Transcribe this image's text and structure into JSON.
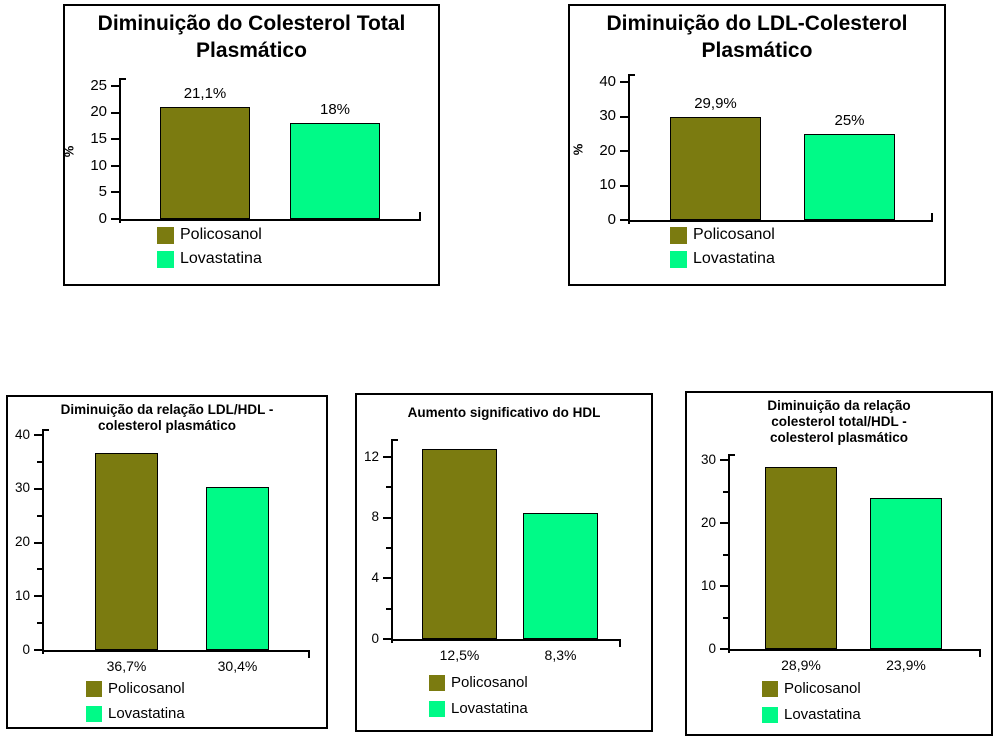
{
  "page": {
    "background": "#ffffff"
  },
  "series_colors": {
    "policosanol": "#7b7b10",
    "lovastatina": "#00fa87"
  },
  "chart_data": [
    {
      "type": "bar",
      "title": "Diminuição do Colesterol Total Plasmático",
      "title_lines": [
        "Diminuição do Colesterol Total",
        "Plasmático"
      ],
      "xlabel": "",
      "ylabel": "%",
      "ylim": [
        0,
        25
      ],
      "yticks": [
        0,
        5,
        10,
        15,
        20,
        25
      ],
      "minor_ticks": [],
      "grid": false,
      "categories": [
        "Policosanol",
        "Lovastatina"
      ],
      "values": [
        21.1,
        18
      ],
      "value_labels": [
        "21,1%",
        "18%"
      ],
      "value_label_position": "above",
      "legend": [
        "Policosanol",
        "Lovastatina"
      ],
      "legend_position": "bottom-left"
    },
    {
      "type": "bar",
      "title": "Diminuição do LDL-Colesterol Plasmático",
      "title_lines": [
        "Diminuição do LDL-Colesterol",
        "Plasmático"
      ],
      "xlabel": "",
      "ylabel": "%",
      "ylim": [
        0,
        40
      ],
      "yticks": [
        0,
        10,
        20,
        30,
        40
      ],
      "minor_ticks": [],
      "grid": false,
      "categories": [
        "Policosanol",
        "Lovastatina"
      ],
      "values": [
        29.9,
        25
      ],
      "value_labels": [
        "29,9%",
        "25%"
      ],
      "value_label_position": "above",
      "legend": [
        "Policosanol",
        "Lovastatina"
      ],
      "legend_position": "bottom-left"
    },
    {
      "type": "bar",
      "title": "Diminuição da relação LDL/HDL - colesterol plasmático",
      "title_lines": [
        "Diminuição da relação LDL/HDL -",
        "colesterol plasmático"
      ],
      "xlabel": "",
      "ylabel": "",
      "ylim": [
        0,
        40
      ],
      "yticks": [
        0,
        10,
        20,
        30,
        40
      ],
      "minor_ticks": [
        5,
        15,
        25,
        35
      ],
      "grid": false,
      "categories": [
        "Policosanol",
        "Lovastatina"
      ],
      "values": [
        36.7,
        30.4
      ],
      "value_labels": [
        "36,7%",
        "30,4%"
      ],
      "value_label_position": "below",
      "legend": [
        "Policosanol",
        "Lovastatina"
      ],
      "legend_position": "bottom-left"
    },
    {
      "type": "bar",
      "title": "Aumento significativo do HDL",
      "title_lines": [
        "Aumento significativo do HDL"
      ],
      "xlabel": "",
      "ylabel": "",
      "ylim": [
        0,
        12
      ],
      "yticks": [
        0,
        4,
        8,
        12
      ],
      "minor_ticks": [
        2,
        6,
        10
      ],
      "grid": false,
      "categories": [
        "Policosanol",
        "Lovastatina"
      ],
      "values": [
        12.5,
        8.3
      ],
      "value_labels": [
        "12,5%",
        "8,3%"
      ],
      "value_label_position": "below",
      "legend": [
        "Policosanol",
        "Lovastatina"
      ],
      "legend_position": "bottom-left"
    },
    {
      "type": "bar",
      "title": "Diminuição da relação colesterol total/HDL - colesterol plasmático",
      "title_lines": [
        "Diminuição da relação",
        "colesterol total/HDL -",
        "colesterol plasmático"
      ],
      "xlabel": "",
      "ylabel": "",
      "ylim": [
        0,
        30
      ],
      "yticks": [
        0,
        10,
        20,
        30
      ],
      "minor_ticks": [
        5,
        15,
        25
      ],
      "grid": false,
      "categories": [
        "Policosanol",
        "Lovastatina"
      ],
      "values": [
        28.9,
        23.9
      ],
      "value_labels": [
        "28,9%",
        "23,9%"
      ],
      "value_label_position": "below",
      "legend": [
        "Policosanol",
        "Lovastatina"
      ],
      "legend_position": "bottom-left"
    }
  ]
}
